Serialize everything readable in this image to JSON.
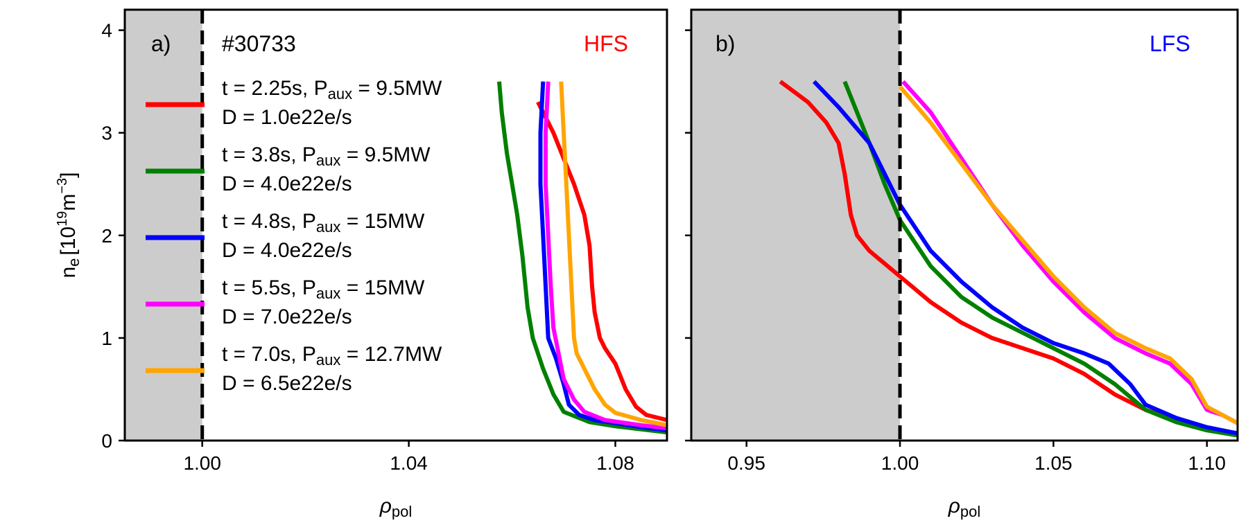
{
  "chart_data": [
    {
      "type": "line",
      "panel_label": "a)",
      "shot_label": "#30733",
      "side_label": "HFS",
      "side_color": "#ff0000",
      "xlabel_base": "ρ",
      "xlabel_sub": "pol",
      "ylabel_base": "n",
      "ylabel_sub": "e",
      "ylabel_unit_open": "[10",
      "ylabel_unit_exp": "19",
      "ylabel_unit_mid": "m",
      "ylabel_unit_exp2": "−3",
      "ylabel_unit_close": "]",
      "xlim": [
        0.985,
        1.09
      ],
      "ylim": [
        0,
        4.2
      ],
      "xticks": [
        1.0,
        1.04,
        1.08
      ],
      "xtick_labels": [
        "1.00",
        "1.04",
        "1.08"
      ],
      "yticks": [
        0,
        1,
        2,
        3,
        4
      ],
      "ytick_labels": [
        "0",
        "1",
        "2",
        "3",
        "4"
      ],
      "shaded_region": [
        0.985,
        1.0
      ],
      "separatrix_x": 1.0,
      "series": [
        {
          "name_line1": "t = 2.25s, P",
          "name_sub": "aux",
          "name_line1_tail": " = 9.5MW",
          "name_line2": "D = 1.0e22e/s",
          "color": "#ff0000",
          "x": [
            1.065,
            1.066,
            1.068,
            1.07,
            1.072,
            1.074,
            1.075,
            1.0755,
            1.076,
            1.077,
            1.078,
            1.08,
            1.082,
            1.084,
            1.086,
            1.09
          ],
          "y": [
            3.3,
            3.2,
            3.0,
            2.75,
            2.5,
            2.2,
            1.9,
            1.5,
            1.25,
            1.0,
            0.9,
            0.75,
            0.5,
            0.33,
            0.25,
            0.2
          ]
        },
        {
          "name_line1": "t = 3.8s, P",
          "name_sub": "aux",
          "name_line1_tail": " = 9.5MW",
          "name_line2": "D = 4.0e22e/s",
          "color": "#008000",
          "x": [
            1.0575,
            1.058,
            1.059,
            1.06,
            1.061,
            1.062,
            1.063,
            1.064,
            1.066,
            1.068,
            1.07,
            1.075,
            1.08,
            1.09
          ],
          "y": [
            3.5,
            3.2,
            2.8,
            2.5,
            2.2,
            1.8,
            1.3,
            1.0,
            0.7,
            0.45,
            0.28,
            0.18,
            0.14,
            0.08
          ]
        },
        {
          "name_line1": "t = 4.8s, P",
          "name_sub": "aux",
          "name_line1_tail": " = 15MW",
          "name_line2": "D = 4.0e22e/s",
          "color": "#0000ff",
          "x": [
            1.066,
            1.0655,
            1.0655,
            1.066,
            1.0665,
            1.067,
            1.0685,
            1.07,
            1.071,
            1.073,
            1.076,
            1.08,
            1.085,
            1.09
          ],
          "y": [
            3.5,
            3.0,
            2.5,
            2.0,
            1.5,
            1.0,
            0.8,
            0.55,
            0.35,
            0.25,
            0.2,
            0.17,
            0.13,
            0.1
          ]
        },
        {
          "name_line1": "t = 5.5s, P",
          "name_sub": "aux",
          "name_line1_tail": " = 15MW",
          "name_line2": "D = 7.0e22e/s",
          "color": "#ff00ff",
          "x": [
            1.067,
            1.0665,
            1.0665,
            1.067,
            1.0675,
            1.068,
            1.069,
            1.07,
            1.072,
            1.074,
            1.078,
            1.085,
            1.09
          ],
          "y": [
            3.5,
            3.0,
            2.5,
            2.0,
            1.5,
            1.1,
            0.85,
            0.6,
            0.4,
            0.28,
            0.2,
            0.15,
            0.12
          ]
        },
        {
          "name_line1": "t = 7.0s, P",
          "name_sub": "aux",
          "name_line1_tail": " = 12.7MW",
          "name_line2": "D = 6.5e22e/s",
          "color": "#ffa500",
          "x": [
            1.0695,
            1.07,
            1.0705,
            1.071,
            1.0715,
            1.072,
            1.0725,
            1.074,
            1.076,
            1.078,
            1.08,
            1.085,
            1.09
          ],
          "y": [
            3.5,
            3.0,
            2.5,
            2.0,
            1.5,
            1.0,
            0.85,
            0.7,
            0.5,
            0.35,
            0.27,
            0.2,
            0.15
          ]
        }
      ]
    },
    {
      "type": "line",
      "panel_label": "b)",
      "side_label": "LFS",
      "side_color": "#0000ff",
      "xlabel_base": "ρ",
      "xlabel_sub": "pol",
      "xlim": [
        0.932,
        1.11
      ],
      "ylim": [
        0,
        4.2
      ],
      "xticks": [
        0.95,
        1.0,
        1.05,
        1.1
      ],
      "xtick_labels": [
        "0.95",
        "1.00",
        "1.05",
        "1.10"
      ],
      "yticks": [
        0,
        1,
        2,
        3,
        4
      ],
      "shaded_region": [
        0.932,
        1.0
      ],
      "separatrix_x": 1.0,
      "series": [
        {
          "color": "#ff0000",
          "x": [
            0.961,
            0.97,
            0.976,
            0.98,
            0.982,
            0.984,
            0.986,
            0.99,
            0.996,
            1.0,
            1.01,
            1.02,
            1.03,
            1.04,
            1.05,
            1.06,
            1.07,
            1.08,
            1.09,
            1.1,
            1.11
          ],
          "y": [
            3.5,
            3.3,
            3.1,
            2.9,
            2.6,
            2.2,
            2.0,
            1.85,
            1.7,
            1.6,
            1.35,
            1.15,
            1.0,
            0.9,
            0.8,
            0.65,
            0.45,
            0.3,
            0.2,
            0.12,
            0.06
          ]
        },
        {
          "color": "#008000",
          "x": [
            0.982,
            0.986,
            0.99,
            0.995,
            1.0,
            1.01,
            1.02,
            1.03,
            1.04,
            1.05,
            1.06,
            1.07,
            1.08,
            1.09,
            1.1,
            1.11
          ],
          "y": [
            3.5,
            3.2,
            2.9,
            2.5,
            2.15,
            1.7,
            1.4,
            1.2,
            1.05,
            0.9,
            0.75,
            0.55,
            0.3,
            0.18,
            0.1,
            0.05
          ]
        },
        {
          "color": "#0000ff",
          "x": [
            0.972,
            0.98,
            0.99,
            0.995,
            1.0,
            1.01,
            1.02,
            1.03,
            1.04,
            1.05,
            1.06,
            1.068,
            1.075,
            1.08,
            1.09,
            1.1,
            1.11
          ],
          "y": [
            3.5,
            3.25,
            2.9,
            2.6,
            2.3,
            1.85,
            1.55,
            1.3,
            1.1,
            0.95,
            0.85,
            0.75,
            0.55,
            0.35,
            0.22,
            0.13,
            0.07
          ]
        },
        {
          "color": "#ff00ff",
          "x": [
            1.001,
            1.01,
            1.02,
            1.03,
            1.04,
            1.05,
            1.06,
            1.07,
            1.08,
            1.088,
            1.095,
            1.1,
            1.105,
            1.11
          ],
          "y": [
            3.5,
            3.2,
            2.75,
            2.3,
            1.9,
            1.55,
            1.25,
            1.0,
            0.85,
            0.75,
            0.55,
            0.3,
            0.25,
            0.17
          ]
        },
        {
          "color": "#ffa500",
          "x": [
            1.0,
            1.01,
            1.02,
            1.03,
            1.04,
            1.05,
            1.06,
            1.07,
            1.08,
            1.088,
            1.095,
            1.1,
            1.105,
            1.11
          ],
          "y": [
            3.45,
            3.1,
            2.7,
            2.3,
            1.95,
            1.6,
            1.3,
            1.05,
            0.9,
            0.8,
            0.6,
            0.33,
            0.25,
            0.17
          ]
        }
      ]
    }
  ]
}
